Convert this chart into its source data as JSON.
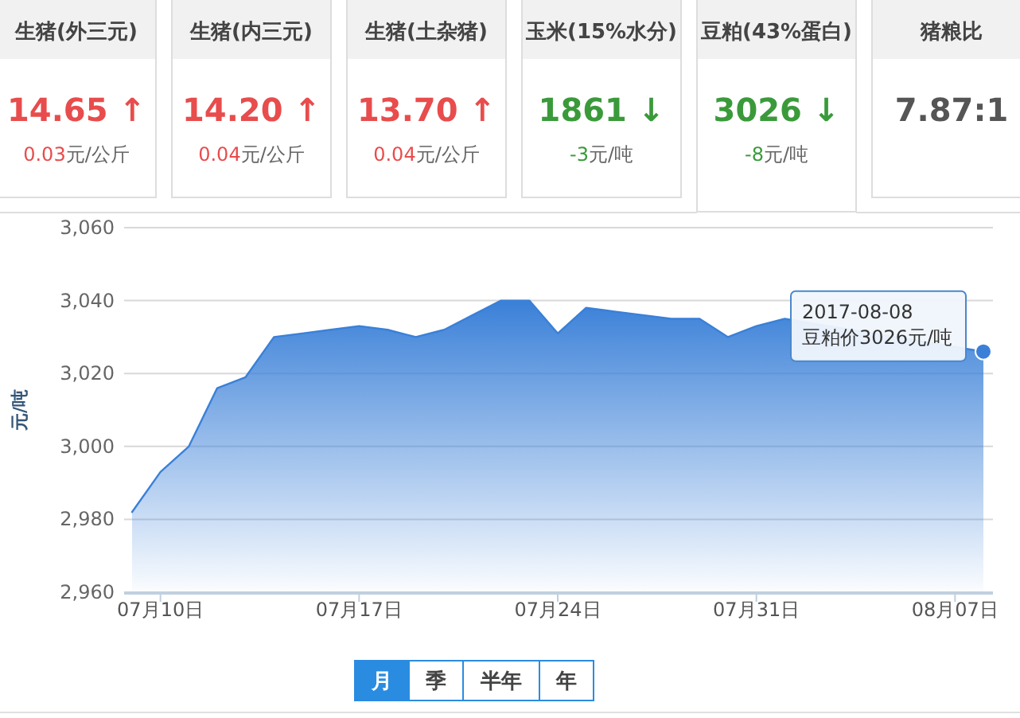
{
  "chart_data": [
    {
      "type": "other",
      "categories": [
        "生猪(外三元)",
        "生猪(内三元)",
        "生猪(土杂猪)",
        "玉米(15%水分)",
        "豆粕(43%蛋白)",
        "猪粮比"
      ],
      "series": [
        {
          "color": "#e84c4c",
          "values": [
            14.65,
            14.2,
            13.7,
            null,
            null,
            null
          ],
          "value_labels": [
            "14.65 ↑",
            "14.20 ↑",
            "13.70 ↑",
            null,
            null,
            null
          ]
        },
        {
          "color": "#3a9a3a",
          "values": [
            null,
            null,
            null,
            1861,
            3026,
            null
          ],
          "value_labels": [
            null,
            null,
            null,
            "1861 ↓",
            "3026 ↓",
            null
          ]
        },
        {
          "color": "#555555",
          "values": [
            null,
            null,
            null,
            null,
            null,
            7.87
          ],
          "value_labels": [
            null,
            null,
            null,
            null,
            null,
            "7.87:1"
          ]
        }
      ],
      "annotations": [
        "0.03元/公斤",
        "0.04元/公斤",
        "0.04元/公斤",
        "-3元/吨",
        "-8元/吨",
        null
      ]
    },
    {
      "type": "area",
      "ylabel": "元/吨",
      "x": [
        "2017-07-09",
        "2017-07-10",
        "2017-07-11",
        "2017-07-12",
        "2017-07-13",
        "2017-07-14",
        "2017-07-15",
        "2017-07-16",
        "2017-07-17",
        "2017-07-18",
        "2017-07-19",
        "2017-07-20",
        "2017-07-21",
        "2017-07-22",
        "2017-07-23",
        "2017-07-24",
        "2017-07-25",
        "2017-07-26",
        "2017-07-27",
        "2017-07-28",
        "2017-07-29",
        "2017-07-30",
        "2017-07-31",
        "2017-08-01",
        "2017-08-08"
      ],
      "series": [
        {
          "color": "#3a80d8",
          "values": [
            2982,
            2993,
            3000,
            3016,
            3019,
            3030,
            3031,
            3032,
            3033,
            3032,
            3030,
            3032,
            3036,
            3040,
            3040,
            3031,
            3038,
            3037,
            3036,
            3035,
            3035,
            3030,
            3033,
            3035,
            3026
          ]
        }
      ],
      "xlim": [
        "2017-07-09",
        "2017-08-08"
      ],
      "xticks": [
        {
          "value": "2017-07-10",
          "label": "07月10日"
        },
        {
          "value": "2017-07-17",
          "label": "07月17日"
        },
        {
          "value": "2017-07-24",
          "label": "07月24日"
        },
        {
          "value": "2017-07-31",
          "label": "07月31日"
        },
        {
          "value": "2017-08-07",
          "label": "08月07日"
        }
      ],
      "ylim": [
        2960,
        3060
      ],
      "yticks": [
        {
          "value": 2960,
          "label": "2,960"
        },
        {
          "value": 2980,
          "label": "2,980"
        },
        {
          "value": 3000,
          "label": "3,000"
        },
        {
          "value": 3020,
          "label": "3,020"
        },
        {
          "value": 3040,
          "label": "3,040"
        },
        {
          "value": 3060,
          "label": "3,060"
        }
      ],
      "grid": "y",
      "annotations": [
        {
          "text": "2017-08-08\n豆粕价3026元/吨",
          "x": "2017-08-08",
          "y": 3026
        },
        "月",
        "季",
        "半年",
        "年"
      ]
    }
  ]
}
